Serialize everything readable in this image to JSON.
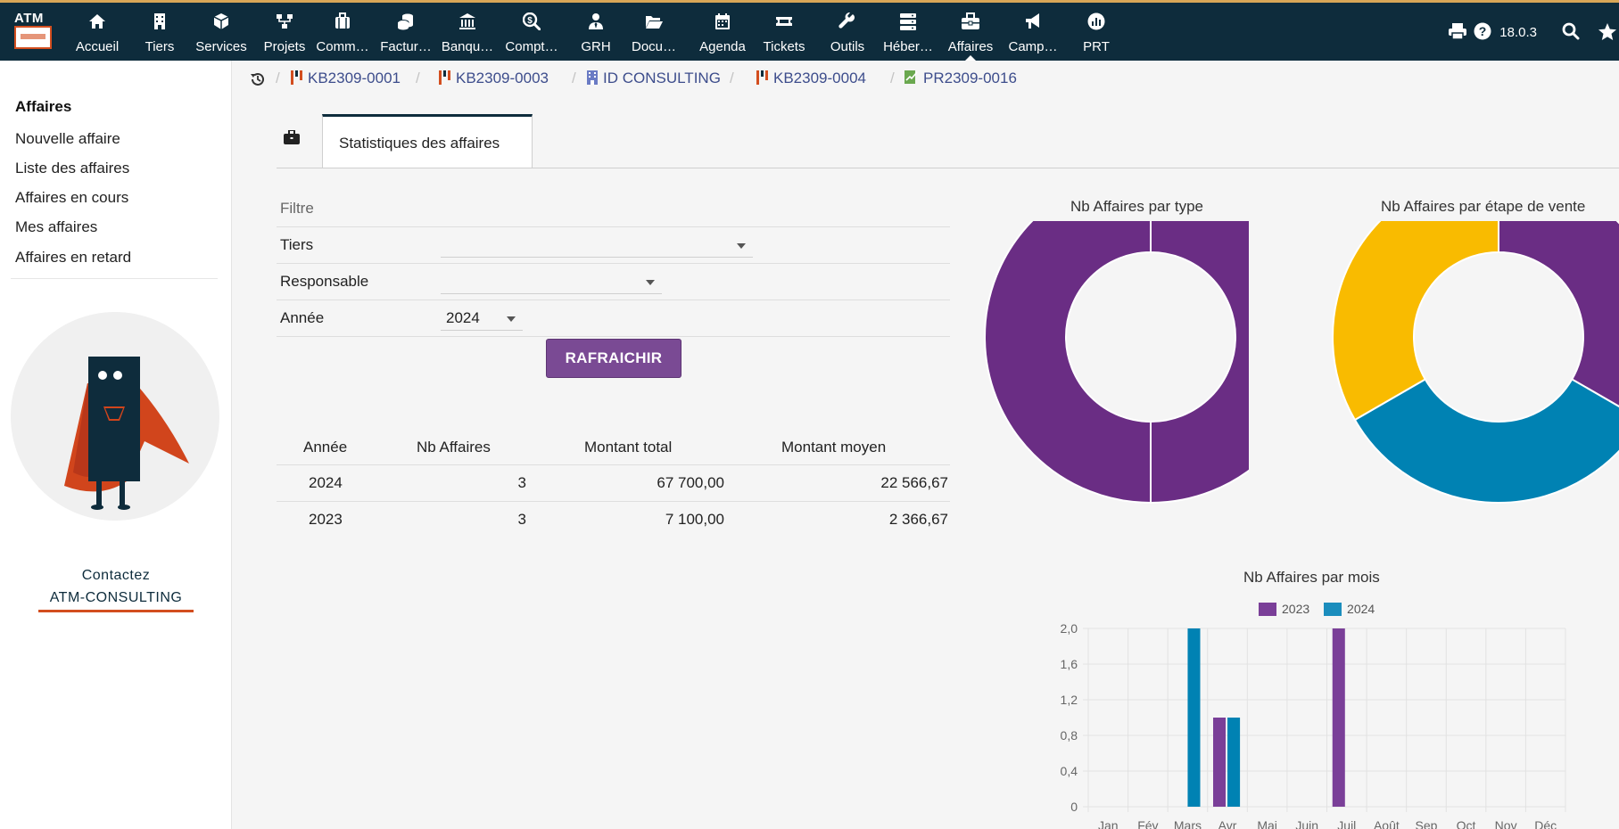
{
  "topbar": {
    "logo_text": "ATM",
    "menu": [
      {
        "label": "Accueil",
        "icon": "home-icon"
      },
      {
        "label": "Tiers",
        "icon": "building-icon"
      },
      {
        "label": "Services",
        "icon": "cube-icon"
      },
      {
        "label": "Projets",
        "icon": "sitemap-icon"
      },
      {
        "label": "Comm…",
        "icon": "suitcase-icon"
      },
      {
        "label": "Factur…",
        "icon": "coins-icon"
      },
      {
        "label": "Banqu…",
        "icon": "bank-icon"
      },
      {
        "label": "Compt…",
        "icon": "search-dollar-icon"
      },
      {
        "label": "GRH",
        "icon": "user-tie-icon"
      },
      {
        "label": "Docu…",
        "icon": "folder-open-icon"
      },
      {
        "label": "Agenda",
        "icon": "calendar-icon"
      },
      {
        "label": "Tickets",
        "icon": "ticket-icon"
      },
      {
        "label": "Outils",
        "icon": "wrench-icon"
      },
      {
        "label": "Héber…",
        "icon": "server-icon"
      },
      {
        "label": "Affaires",
        "icon": "briefcase-icon",
        "active": true
      },
      {
        "label": "Camp…",
        "icon": "bullhorn-icon"
      },
      {
        "label": "PRT",
        "icon": "chart-circle-icon"
      }
    ],
    "version": "18.0.3"
  },
  "sidebar": {
    "title": "Affaires",
    "links": [
      "Nouvelle affaire",
      "Liste des affaires",
      "Affaires en cours",
      "Mes affaires",
      "Affaires en retard"
    ],
    "contact_line1": "Contactez",
    "contact_line2": "ATM-CONSULTING"
  },
  "breadcrumbs": [
    {
      "label": "KB2309-0001",
      "icon": "flag-icon"
    },
    {
      "label": "KB2309-0003",
      "icon": "flag-icon"
    },
    {
      "label": "ID CONSULTING",
      "icon": "building-icon"
    },
    {
      "label": "KB2309-0004",
      "icon": "flag-icon"
    },
    {
      "label": "PR2309-0016",
      "icon": "file-signature-icon"
    }
  ],
  "tab": {
    "label": "Statistiques des affaires"
  },
  "filter": {
    "title": "Filtre",
    "tiers_label": "Tiers",
    "tiers_value": "",
    "responsable_label": "Responsable",
    "responsable_value": "",
    "annee_label": "Année",
    "annee_value": "2024",
    "refresh_label": "RAFRAICHIR"
  },
  "stats_table": {
    "headers": [
      "Année",
      "Nb Affaires",
      "Montant total",
      "Montant moyen"
    ],
    "rows": [
      [
        "2024",
        "3",
        "67 700,00",
        "22 566,67"
      ],
      [
        "2023",
        "3",
        "7 100,00",
        "2 366,67"
      ]
    ]
  },
  "colors": {
    "purple": "#6a2d84",
    "teal": "#0082b3",
    "yellow": "#f9bb00",
    "legend_purple": "#7a3f98",
    "legend_teal": "#1b8dbd"
  },
  "chart_data": [
    {
      "type": "pie",
      "title": "Nb Affaires par type",
      "labels": [
        ""
      ],
      "values": [
        1
      ]
    },
    {
      "type": "pie",
      "title": "Nb Affaires par étape de vente",
      "labels": [
        "",
        "",
        ""
      ],
      "values": [
        1,
        1,
        1
      ],
      "note_colors": [
        "purple",
        "teal",
        "yellow"
      ]
    },
    {
      "type": "bar",
      "title": "Nb Affaires par mois",
      "categories": [
        "Jan",
        "Fév",
        "Mars",
        "Avr",
        "Mai",
        "Juin",
        "Juil",
        "Août",
        "Sep",
        "Oct",
        "Nov",
        "Déc"
      ],
      "series": [
        {
          "name": "2023",
          "values": [
            0,
            0,
            0,
            1,
            0,
            0,
            2,
            0,
            0,
            0,
            0,
            0
          ]
        },
        {
          "name": "2024",
          "values": [
            0,
            0,
            2,
            1,
            0,
            0,
            0,
            0,
            0,
            0,
            0,
            0
          ]
        }
      ],
      "yticks": [
        "0",
        "0,4",
        "0,8",
        "1,2",
        "1,6",
        "2,0"
      ],
      "ylim": [
        0,
        2
      ],
      "grid": true,
      "legend": "top"
    }
  ]
}
